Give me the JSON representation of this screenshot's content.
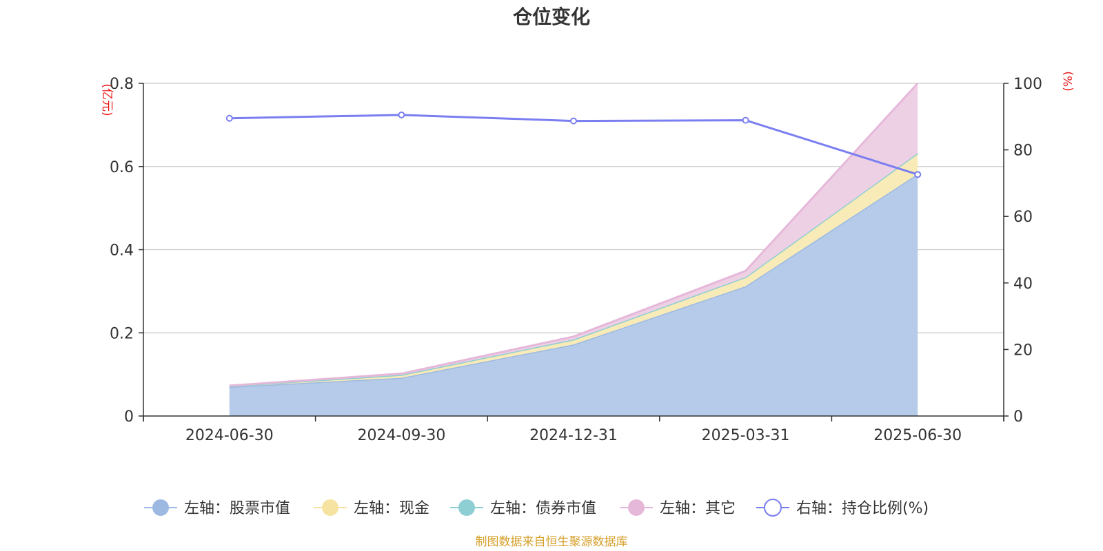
{
  "chart_data": {
    "type": "area",
    "title": "仓位变化",
    "categories": [
      "2024-06-30",
      "2024-09-30",
      "2024-12-31",
      "2025-03-31",
      "2025-06-30"
    ],
    "left_axis": {
      "unit": "(亿元)",
      "ylim": [
        0,
        0.8
      ],
      "ticks": [
        "0",
        "0.2",
        "0.4",
        "0.6",
        "0.8"
      ],
      "tick_values": [
        0,
        0.2,
        0.4,
        0.6,
        0.8
      ]
    },
    "right_axis": {
      "unit": "(%)",
      "ylim": [
        0,
        100
      ],
      "ticks": [
        "0",
        "20",
        "40",
        "60",
        "80",
        "100"
      ],
      "tick_values": [
        0,
        20,
        40,
        60,
        80,
        100
      ]
    },
    "stacked": true,
    "series": [
      {
        "name": "左轴：股票市值",
        "axis": "left",
        "type": "area",
        "color": "#9db9e2",
        "fill": "#b5cbe9",
        "values": [
          0.07,
          0.092,
          0.172,
          0.312,
          0.582
        ]
      },
      {
        "name": "左轴：现金",
        "axis": "left",
        "type": "area",
        "color": "#f6e3a1",
        "fill": "#f8ebb8",
        "values": [
          0.002,
          0.007,
          0.012,
          0.022,
          0.05
        ]
      },
      {
        "name": "左轴：债券市值",
        "axis": "left",
        "type": "area",
        "color": "#8dcfd3",
        "fill": "#a6dade",
        "values": [
          0,
          0,
          0,
          0,
          0
        ]
      },
      {
        "name": "左轴：其它",
        "axis": "left",
        "type": "area",
        "color": "#e5b8da",
        "fill": "#eed0e5",
        "values": [
          0.001,
          0.003,
          0.007,
          0.015,
          0.168
        ]
      },
      {
        "name": "右轴：持仓比例(%)",
        "axis": "right",
        "type": "line",
        "color": "#7a7ef0",
        "values": [
          89.5,
          90.5,
          88.7,
          88.9,
          72.6
        ]
      }
    ],
    "grid": true,
    "legend": "bottom-center"
  },
  "source_note": "制图数据来自恒生聚源数据库"
}
